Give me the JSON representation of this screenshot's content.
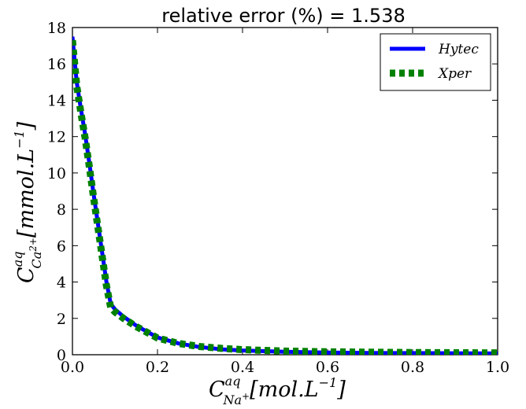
{
  "chart_data": {
    "type": "line",
    "title": "relative error (%) = 1.538",
    "xlabel": {
      "main": "C",
      "sup": "aq",
      "sub": "Na",
      "sub_sup": "+",
      "rest": "[mol.L",
      "exp": "−1",
      "close": "]"
    },
    "ylabel": {
      "main": "C",
      "sup": "aq",
      "sub": "Ca",
      "sub_sup": "2+",
      "rest": "[mmol.L",
      "exp": "−1",
      "close": "]"
    },
    "xlim": [
      0.0,
      1.0
    ],
    "ylim": [
      0,
      18
    ],
    "x_ticks": [
      "0.0",
      "0.2",
      "0.4",
      "0.6",
      "0.8",
      "1.0"
    ],
    "y_ticks": [
      "0",
      "2",
      "4",
      "6",
      "8",
      "10",
      "12",
      "14",
      "16",
      "18"
    ],
    "grid": false,
    "legend_position": "top-right",
    "series": [
      {
        "name": "Hytec",
        "color": "#0000ff",
        "style": "solid",
        "x": [
          0.0,
          0.01,
          0.02,
          0.03,
          0.04,
          0.05,
          0.06,
          0.07,
          0.08,
          0.09,
          0.1,
          0.12,
          0.15,
          0.2,
          0.25,
          0.3,
          0.35,
          0.4,
          0.5,
          0.6,
          0.7,
          0.8,
          0.9,
          1.0
        ],
        "y": [
          17.5,
          15.0,
          13.5,
          12.1,
          10.5,
          8.8,
          7.2,
          5.6,
          4.0,
          2.8,
          2.5,
          2.1,
          1.6,
          0.95,
          0.62,
          0.42,
          0.3,
          0.23,
          0.16,
          0.12,
          0.1,
          0.09,
          0.08,
          0.07
        ]
      },
      {
        "name": "Xper",
        "color": "#008000",
        "style": "dashed",
        "x": [
          0.0,
          0.01,
          0.02,
          0.03,
          0.04,
          0.05,
          0.06,
          0.07,
          0.08,
          0.09,
          0.1,
          0.12,
          0.15,
          0.2,
          0.25,
          0.3,
          0.35,
          0.4,
          0.5,
          0.6,
          0.7,
          0.8,
          0.9,
          1.0
        ],
        "y": [
          17.3,
          14.8,
          13.3,
          11.9,
          10.3,
          8.6,
          7.0,
          5.4,
          3.8,
          2.6,
          2.35,
          2.0,
          1.55,
          0.92,
          0.62,
          0.45,
          0.35,
          0.28,
          0.2,
          0.16,
          0.14,
          0.12,
          0.11,
          0.1
        ]
      }
    ]
  }
}
